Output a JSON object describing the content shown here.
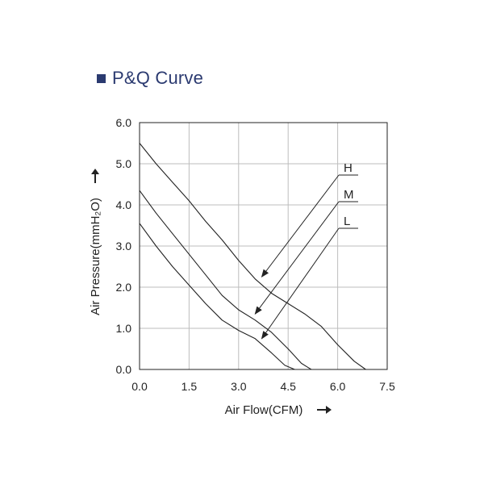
{
  "chart_data": {
    "type": "line",
    "title": "P&Q Curve",
    "xlabel": "Air Flow(CFM)",
    "ylabel": "Air Pressure(mmH₂O)",
    "xlim": [
      0,
      7.5
    ],
    "ylim": [
      0,
      6
    ],
    "xticks": [
      "0.0",
      "1.5",
      "3.0",
      "4.5",
      "6.0",
      "7.5"
    ],
    "yticks": [
      "0.0",
      "1.0",
      "2.0",
      "3.0",
      "4.0",
      "5.0",
      "6.0"
    ],
    "grid": true,
    "series": [
      {
        "name": "H",
        "x": [
          0,
          0.5,
          1.0,
          1.5,
          2.0,
          2.5,
          3.0,
          3.5,
          4.0,
          4.5,
          5.0,
          5.5,
          6.0,
          6.5,
          6.85
        ],
        "y": [
          5.5,
          5.0,
          4.55,
          4.1,
          3.6,
          3.15,
          2.65,
          2.2,
          1.85,
          1.6,
          1.35,
          1.05,
          0.6,
          0.2,
          0.0
        ]
      },
      {
        "name": "M",
        "x": [
          0,
          0.5,
          1.0,
          1.5,
          2.0,
          2.5,
          3.0,
          3.5,
          4.0,
          4.5,
          4.9,
          5.2
        ],
        "y": [
          4.35,
          3.8,
          3.3,
          2.8,
          2.3,
          1.8,
          1.45,
          1.2,
          0.9,
          0.5,
          0.15,
          0.0
        ]
      },
      {
        "name": "L",
        "x": [
          0,
          0.5,
          1.0,
          1.5,
          2.0,
          2.5,
          3.0,
          3.5,
          4.0,
          4.4,
          4.7
        ],
        "y": [
          3.55,
          3.0,
          2.5,
          2.05,
          1.6,
          1.2,
          0.95,
          0.75,
          0.4,
          0.1,
          0.0
        ]
      }
    ],
    "annotations": [
      {
        "label": "H",
        "target": [
          3.7,
          2.25
        ]
      },
      {
        "label": "M",
        "target": [
          3.5,
          1.35
        ]
      },
      {
        "label": "L",
        "target": [
          3.7,
          0.75
        ]
      }
    ],
    "colors": {
      "line": "#222222",
      "grid": "#bdbdbd",
      "title": "#2b3a70"
    }
  }
}
